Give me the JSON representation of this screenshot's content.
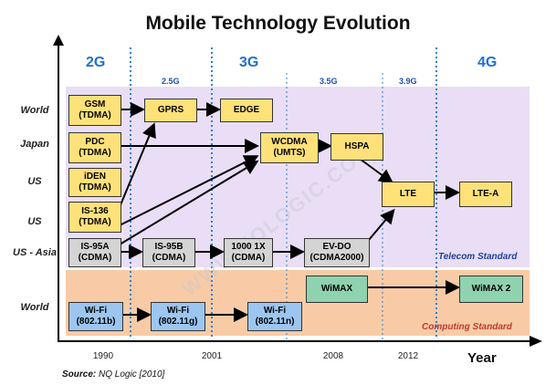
{
  "title": "Mobile Technology Evolution",
  "generations": {
    "g2": "2G",
    "g3": "3G",
    "g4": "4G",
    "g25": "2.5G",
    "g35": "3.5G",
    "g39": "3.9G"
  },
  "row_labels": [
    "World",
    "Japan",
    "US",
    "US",
    "US - Asia",
    "World"
  ],
  "boxes": {
    "gsm": "GSM\n(TDMA)",
    "pdc": "PDC\n(TDMA)",
    "iden": "iDEN\n(TDMA)",
    "is136": "IS-136\n(TDMA)",
    "is95a": "IS-95A\n(CDMA)",
    "gprs": "GPRS",
    "edge": "EDGE",
    "is95b": "IS-95B\n(CDMA)",
    "cdma1x": "1000 1X\n(CDMA)",
    "wcdma": "WCDMA\n(UMTS)",
    "hspa": "HSPA",
    "evdo": "EV-DO\n(CDMA2000)",
    "lte": "LTE",
    "ltea": "LTE-A",
    "wimax": "WiMAX",
    "wimax2": "WiMAX 2",
    "wifi_b": "Wi-Fi\n(802.11b)",
    "wifi_g": "Wi-Fi\n(802.11g)",
    "wifi_n": "Wi-Fi\n(802.11n)"
  },
  "standards": {
    "telecom": "Telecom Standard",
    "computing": "Computing Standard"
  },
  "x_ticks": [
    "1990",
    "2001",
    "2008",
    "2012"
  ],
  "x_label": "Year",
  "source_label": "Source:",
  "source_text": " NQ Logic [2010]",
  "watermark": "WWW.NQLOGIC.COM",
  "colors": {
    "telecom_band": "#e9def5",
    "computing_band": "#f8cba6",
    "generation": "#1f6fd0",
    "telecom_text": "#1f3f9f",
    "computing_text": "#c0392b"
  }
}
